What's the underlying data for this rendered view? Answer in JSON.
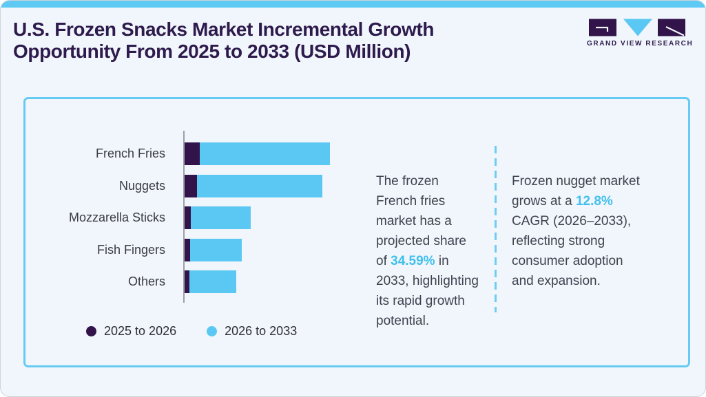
{
  "header": {
    "title_lines": [
      "U.S. Frozen Snacks Market Incremental Growth",
      "Opportunity From 2025 to 2033 (USD Million)"
    ],
    "brand": "GRAND VIEW RESEARCH"
  },
  "chart_data": {
    "type": "bar",
    "orientation": "horizontal",
    "stacked": true,
    "title": "U.S. Frozen Snacks Market Incremental Growth Opportunity From 2025 to 2033 (USD Million)",
    "categories": [
      "French Fries",
      "Nuggets",
      "Mozzarella Sticks",
      "Fish Fingers",
      "Others"
    ],
    "series": [
      {
        "name": "2025 to 2026",
        "color": "#32134a",
        "values": [
          10.2,
          8.5,
          4.4,
          4.0,
          3.3
        ]
      },
      {
        "name": "2026 to 2033",
        "color": "#5bc8f3",
        "values": [
          89.8,
          86.5,
          41.1,
          35.3,
          32.1
        ]
      }
    ],
    "value_units": "relative bar length, % of longest stacked bar (numeric axis not shown; units USD Million)",
    "legend_position": "bottom-left",
    "grid": false,
    "axis_labels_shown": false
  },
  "insights": [
    {
      "segments": [
        {
          "t": "The frozen French fries market has a projected share of ",
          "accent": false
        },
        {
          "t": "34.59%",
          "accent": true
        },
        {
          "t": " in 2033, highlighting its rapid growth potential.",
          "accent": false
        }
      ]
    },
    {
      "segments": [
        {
          "t": "Frozen nugget market grows at a ",
          "accent": false
        },
        {
          "t": "12.8%",
          "accent": true
        },
        {
          "t": " CAGR (2026–2033), reflecting strong consumer adoption and expansion.",
          "accent": false
        }
      ]
    }
  ],
  "colors": {
    "page_background": "#f0f6fb",
    "top_bar": "#5ec9f3",
    "card_border": "#66cbf3",
    "bar_blue": "#5bc8f3",
    "bar_purple": "#32134a",
    "title_text": "#2e1a4c",
    "body_text": "#3f424f",
    "accent_text": "#41bfee",
    "axis_line": "#9da0a6"
  }
}
